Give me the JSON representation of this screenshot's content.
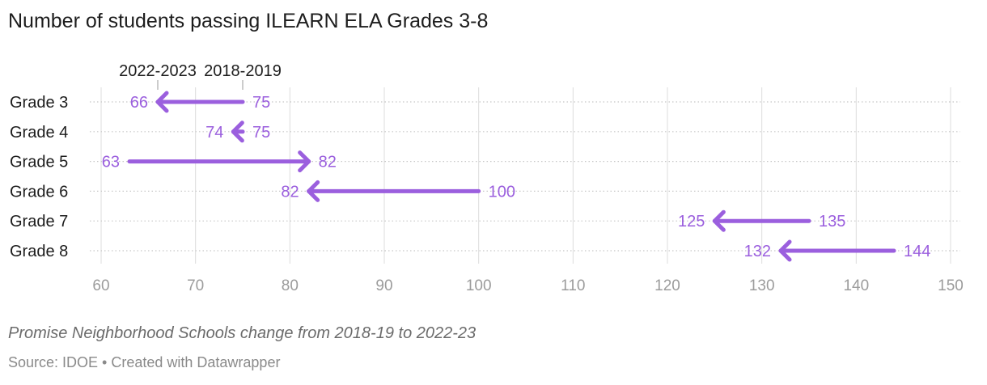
{
  "title": "Number of students passing ILEARN ELA Grades 3-8",
  "subtitle": "Promise Neighborhood Schools change from 2018-19 to 2022-23",
  "source_line": "Source: IDOE • Created with Datawrapper",
  "colors": {
    "arrow": "#9b5fde",
    "label": "#9b5fde",
    "axis_text": "#9c9c9c",
    "grid": "#dcdcdc",
    "dotgrid": "#c8c8c8",
    "text": "#1d1d1d"
  },
  "chart_data": {
    "type": "arrow",
    "categories": [
      "Grade 3",
      "Grade 4",
      "Grade 5",
      "Grade 6",
      "Grade 7",
      "Grade 8"
    ],
    "series": [
      {
        "name": "2018-2019",
        "values": [
          75,
          75,
          63,
          100,
          135,
          144
        ]
      },
      {
        "name": "2022-2023",
        "values": [
          66,
          74,
          82,
          82,
          125,
          132
        ]
      }
    ],
    "xlim": [
      60,
      150
    ],
    "xticks": [
      60,
      70,
      80,
      90,
      100,
      110,
      120,
      130,
      140,
      150
    ],
    "grid": true,
    "legend_annotations": [
      {
        "text": "2022-2023",
        "value": 66
      },
      {
        "text": "2018-2019",
        "value": 75
      }
    ]
  }
}
